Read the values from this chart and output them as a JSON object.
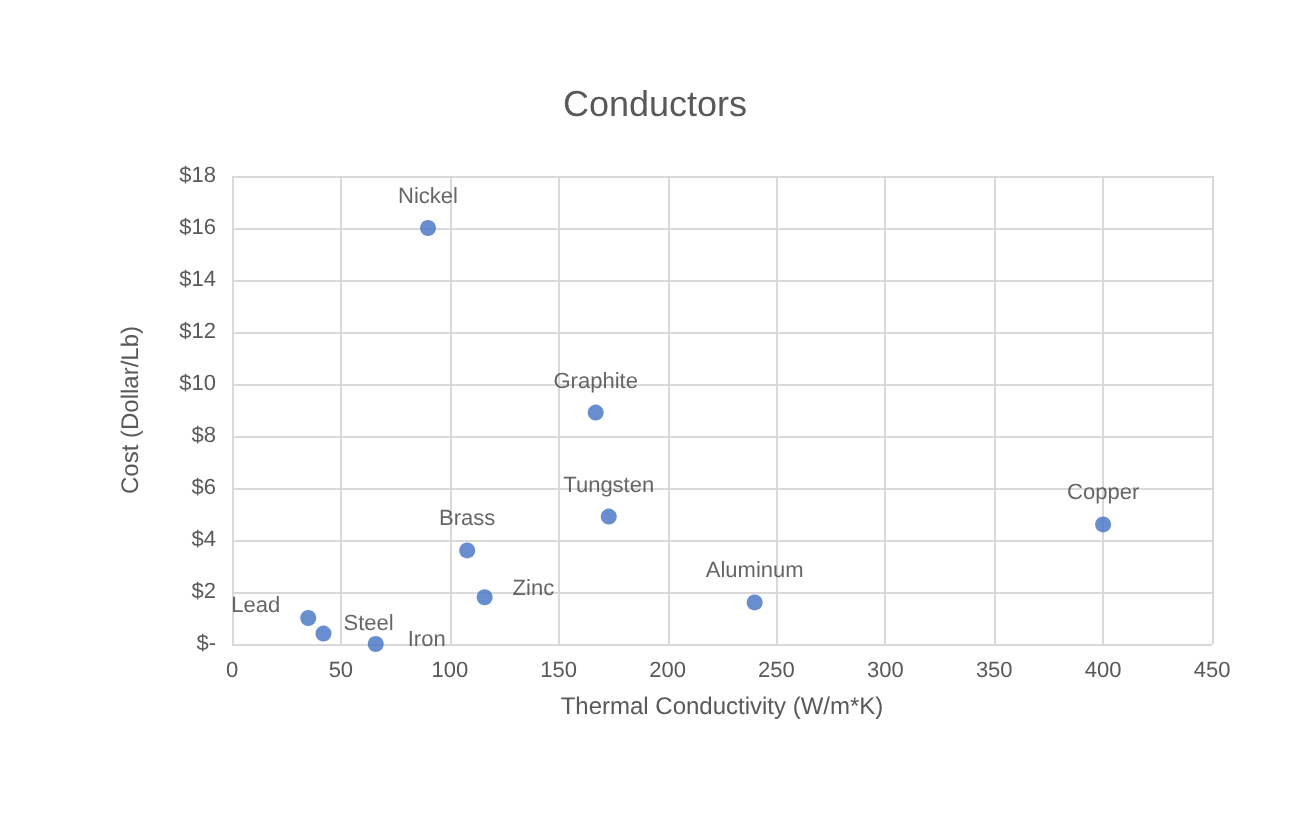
{
  "chart_data": {
    "type": "scatter",
    "title": "Conductors",
    "xlabel": "Thermal Conductivity (W/m*K)",
    "ylabel": "Cost (Dollar/Lb)",
    "marker": "circle",
    "grid": true,
    "legend": false,
    "xlim": [
      0,
      450
    ],
    "xticks": [
      0,
      50,
      100,
      150,
      200,
      250,
      300,
      350,
      400,
      450
    ],
    "ylim": [
      0,
      18
    ],
    "yticks": [
      {
        "value": 0,
        "label": "$-"
      },
      {
        "value": 2,
        "label": "$2"
      },
      {
        "value": 4,
        "label": "$4"
      },
      {
        "value": 6,
        "label": "$6"
      },
      {
        "value": 8,
        "label": "$8"
      },
      {
        "value": 10,
        "label": "$10"
      },
      {
        "value": 12,
        "label": "$12"
      },
      {
        "value": 14,
        "label": "$14"
      },
      {
        "value": 16,
        "label": "$16"
      },
      {
        "value": 18,
        "label": "$18"
      }
    ],
    "series": [
      {
        "name": "Nickel",
        "color": "#4472c4",
        "x": [
          90
        ],
        "values": [
          16
        ]
      },
      {
        "name": "Graphite",
        "color": "#4472c4",
        "x": [
          167
        ],
        "values": [
          8.9
        ]
      },
      {
        "name": "Tungsten",
        "color": "#4472c4",
        "x": [
          173
        ],
        "values": [
          4.9
        ]
      },
      {
        "name": "Brass",
        "color": "#4472c4",
        "x": [
          108
        ],
        "values": [
          3.6
        ]
      },
      {
        "name": "Copper",
        "color": "#4472c4",
        "x": [
          400
        ],
        "values": [
          4.6
        ]
      },
      {
        "name": "Aluminum",
        "color": "#4472c4",
        "x": [
          240
        ],
        "values": [
          1.6
        ]
      },
      {
        "name": "Zinc",
        "color": "#4472c4",
        "x": [
          116
        ],
        "values": [
          1.8
        ]
      },
      {
        "name": "Lead",
        "color": "#4472c4",
        "x": [
          35
        ],
        "values": [
          1.0
        ]
      },
      {
        "name": "Steel",
        "color": "#4472c4",
        "x": [
          42
        ],
        "values": [
          0.4
        ]
      },
      {
        "name": "Iron",
        "color": "#4472c4",
        "x": [
          66
        ],
        "values": [
          0
        ]
      }
    ]
  }
}
